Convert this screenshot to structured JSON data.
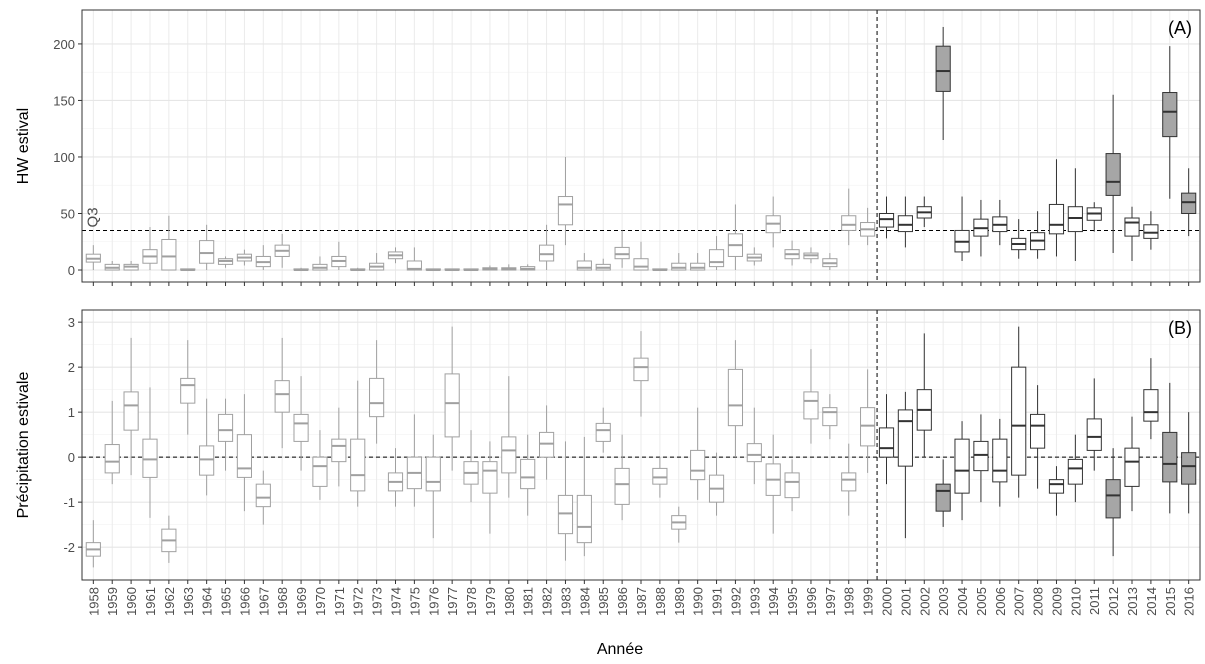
{
  "chart_data": [
    {
      "type": "box",
      "ylabel": "HW estival",
      "annotation": "(A)",
      "hline": 35,
      "hline_label": "Q3",
      "ylim": [
        -10.6,
        230
      ],
      "yticks": [
        0,
        50,
        100,
        150,
        200
      ],
      "grid": true,
      "vline_after": "1999",
      "color_before": "#a0a0a0",
      "color_after": "#333333",
      "highlight_fill": "#a6a6a6",
      "highlight": [
        "2003",
        "2012",
        "2015",
        "2016"
      ],
      "whisker_low": [
        0,
        0,
        0,
        0,
        0,
        0,
        0,
        2,
        4,
        0,
        2,
        0,
        0,
        0,
        0,
        0,
        6,
        0,
        0,
        0,
        0,
        0,
        0,
        0,
        0,
        22,
        0,
        0,
        2,
        0,
        0,
        0,
        0,
        0,
        0,
        4,
        20,
        4,
        6,
        0,
        22,
        22,
        28,
        20,
        38,
        115,
        8,
        12,
        22,
        10,
        10,
        12,
        8,
        34,
        15,
        8,
        18,
        63,
        30
      ],
      "q1": [
        7,
        0,
        0,
        6,
        0,
        0,
        6,
        5,
        8,
        3,
        12,
        0,
        0,
        3,
        0,
        0,
        10,
        0,
        0,
        0,
        0,
        0,
        0,
        0,
        8,
        40,
        0,
        0,
        10,
        0,
        0,
        0,
        0,
        3,
        12,
        8,
        33,
        10,
        10,
        3,
        35,
        30,
        38,
        34,
        46,
        158,
        16,
        30,
        34,
        18,
        18,
        32,
        34,
        44,
        66,
        30,
        28,
        118,
        50
      ],
      "median": [
        10,
        2,
        3,
        12,
        12,
        0,
        15,
        8,
        11,
        7,
        17,
        0,
        2,
        8,
        0,
        3,
        13,
        1,
        0,
        0,
        0,
        1,
        1,
        1,
        14,
        58,
        2,
        2,
        14,
        3,
        0,
        2,
        2,
        7,
        22,
        11,
        41,
        14,
        13,
        6,
        40,
        36,
        45,
        40,
        51,
        176,
        25,
        37,
        40,
        23,
        26,
        40,
        46,
        50,
        78,
        42,
        33,
        140,
        60
      ],
      "q3": [
        14,
        5,
        5,
        18,
        27,
        1,
        26,
        10,
        14,
        12,
        22,
        1,
        5,
        12,
        1,
        6,
        16,
        8,
        1,
        1,
        1,
        2,
        2,
        3,
        22,
        65,
        8,
        5,
        20,
        10,
        1,
        6,
        6,
        18,
        32,
        14,
        48,
        18,
        15,
        10,
        48,
        42,
        50,
        48,
        56,
        198,
        35,
        45,
        47,
        28,
        33,
        58,
        56,
        55,
        103,
        46,
        40,
        157,
        68
      ],
      "whisker_high": [
        22,
        8,
        8,
        38,
        48,
        1,
        40,
        12,
        18,
        22,
        32,
        2,
        12,
        25,
        2,
        15,
        20,
        20,
        1,
        1,
        1,
        4,
        5,
        5,
        40,
        100,
        15,
        10,
        35,
        25,
        1,
        15,
        15,
        30,
        58,
        20,
        65,
        26,
        20,
        15,
        72,
        55,
        65,
        65,
        65,
        215,
        65,
        62,
        62,
        45,
        52,
        98,
        90,
        60,
        155,
        56,
        52,
        198,
        90
      ]
    },
    {
      "type": "box",
      "ylabel": "Précipitation estivale",
      "xlabel": "Année",
      "annotation": "(B)",
      "hline": 0,
      "ylim": [
        -2.73,
        3.27
      ],
      "yticks": [
        -2,
        -1,
        0,
        1,
        2,
        3
      ],
      "grid": true,
      "vline_after": "1999",
      "color_before": "#a0a0a0",
      "color_after": "#333333",
      "highlight_fill": "#a6a6a6",
      "highlight": [
        "2003",
        "2012",
        "2015",
        "2016"
      ],
      "categories": [
        "1958",
        "1959",
        "1960",
        "1961",
        "1962",
        "1963",
        "1964",
        "1965",
        "1966",
        "1967",
        "1968",
        "1969",
        "1970",
        "1971",
        "1972",
        "1973",
        "1974",
        "1975",
        "1976",
        "1977",
        "1978",
        "1979",
        "1980",
        "1981",
        "1982",
        "1983",
        "1984",
        "1985",
        "1986",
        "1987",
        "1988",
        "1989",
        "1990",
        "1991",
        "1992",
        "1993",
        "1994",
        "1995",
        "1996",
        "1997",
        "1998",
        "1999",
        "2000",
        "2001",
        "2002",
        "2003",
        "2004",
        "2005",
        "2006",
        "2007",
        "2008",
        "2009",
        "2010",
        "2011",
        "2012",
        "2013",
        "2014",
        "2015",
        "2016"
      ],
      "whisker_low": [
        -2.45,
        -0.6,
        -0.4,
        -1.35,
        -2.35,
        0.5,
        -0.85,
        -0.3,
        -1.2,
        -1.5,
        0.2,
        -0.3,
        -0.95,
        -0.65,
        -1.1,
        0.3,
        -1.1,
        -1.1,
        -1.8,
        -0.3,
        -1.0,
        -1.7,
        -0.9,
        -1.3,
        -0.5,
        -2.3,
        -2.2,
        0.1,
        -1.4,
        0.9,
        -0.9,
        -1.9,
        -0.95,
        -1.3,
        0.0,
        -0.6,
        -1.7,
        -1.2,
        0.3,
        0.4,
        -1.3,
        -0.35,
        -0.6,
        -1.8,
        0.0,
        -1.55,
        -1.4,
        -1.0,
        -1.1,
        -0.9,
        -0.7,
        -1.3,
        -1.0,
        -0.3,
        -2.2,
        -1.2,
        0.4,
        -1.25,
        -1.25
      ],
      "q1": [
        -2.2,
        -0.35,
        0.6,
        -0.45,
        -2.1,
        1.2,
        -0.4,
        0.35,
        -0.45,
        -1.1,
        1.0,
        0.35,
        -0.65,
        -0.1,
        -0.75,
        0.9,
        -0.75,
        -0.7,
        -0.75,
        0.45,
        -0.6,
        -0.8,
        -0.35,
        -0.7,
        0.0,
        -1.7,
        -1.9,
        0.35,
        -1.05,
        1.7,
        -0.6,
        -1.6,
        -0.5,
        -1.0,
        0.7,
        -0.1,
        -0.85,
        -0.9,
        0.85,
        0.7,
        -0.75,
        0.25,
        0.0,
        -0.2,
        0.6,
        -1.2,
        -0.8,
        -0.3,
        -0.55,
        -0.4,
        0.2,
        -0.8,
        -0.6,
        0.15,
        -1.35,
        -0.65,
        0.8,
        -0.55,
        -0.6
      ],
      "median": [
        -2.05,
        -0.1,
        1.15,
        -0.05,
        -1.85,
        1.6,
        -0.05,
        0.6,
        -0.25,
        -0.9,
        1.4,
        0.75,
        -0.2,
        0.25,
        -0.4,
        1.2,
        -0.55,
        -0.35,
        -0.55,
        1.2,
        -0.35,
        -0.3,
        0.15,
        -0.45,
        0.3,
        -1.25,
        -1.55,
        0.6,
        -0.6,
        2.0,
        -0.45,
        -1.45,
        -0.3,
        -0.7,
        1.15,
        0.05,
        -0.5,
        -0.55,
        1.25,
        1.0,
        -0.5,
        0.7,
        0.2,
        0.8,
        1.05,
        -0.75,
        -0.3,
        0.05,
        -0.3,
        0.7,
        0.7,
        -0.6,
        -0.25,
        0.45,
        -0.85,
        -0.1,
        1.0,
        -0.15,
        -0.2
      ],
      "q3": [
        -1.9,
        0.28,
        1.45,
        0.4,
        -1.6,
        1.75,
        0.25,
        0.95,
        0.5,
        -0.6,
        1.7,
        0.95,
        0.0,
        0.4,
        0.4,
        1.75,
        -0.35,
        0.0,
        0.0,
        1.85,
        -0.1,
        -0.1,
        0.45,
        -0.05,
        0.55,
        -0.85,
        -0.85,
        0.75,
        -0.25,
        2.2,
        -0.25,
        -1.3,
        0.15,
        -0.4,
        1.95,
        0.3,
        -0.15,
        -0.35,
        1.45,
        1.1,
        -0.35,
        1.1,
        0.65,
        1.05,
        1.5,
        -0.6,
        0.4,
        0.35,
        0.4,
        2.0,
        0.95,
        -0.5,
        -0.05,
        0.85,
        -0.5,
        0.2,
        1.5,
        0.55,
        0.1
      ],
      "whisker_high": [
        -1.4,
        1.25,
        2.65,
        1.55,
        -1.3,
        2.6,
        1.3,
        1.3,
        1.4,
        -0.3,
        2.65,
        1.8,
        0.6,
        1.1,
        1.7,
        2.6,
        0.2,
        0.95,
        0.5,
        2.9,
        0.6,
        0.35,
        1.8,
        0.5,
        1.15,
        0.35,
        0.45,
        1.1,
        0.5,
        2.8,
        0.0,
        -1.1,
        1.1,
        0.1,
        2.6,
        1.1,
        0.5,
        -0.05,
        2.4,
        1.4,
        0.3,
        1.95,
        1.4,
        1.45,
        2.75,
        -0.05,
        0.8,
        0.95,
        0.85,
        2.9,
        1.6,
        -0.2,
        0.5,
        1.75,
        0.2,
        0.9,
        2.2,
        1.65,
        1.0
      ]
    }
  ]
}
